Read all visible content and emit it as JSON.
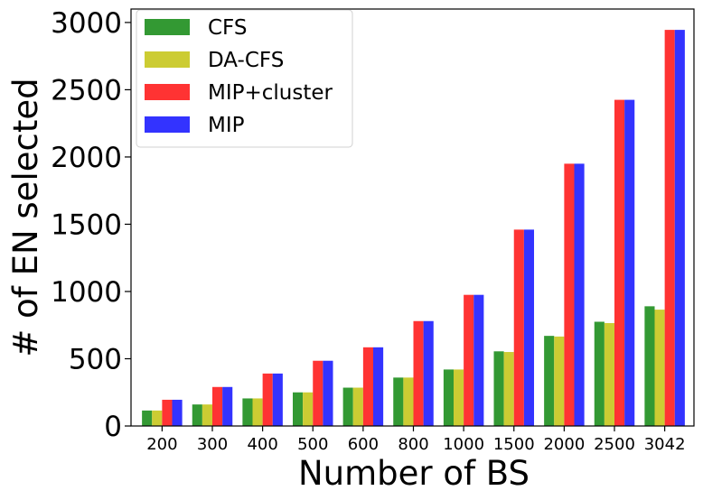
{
  "chart_data": {
    "type": "bar",
    "xlabel": "Number of BS",
    "ylabel": "# of EN selected",
    "categories": [
      "200",
      "300",
      "400",
      "500",
      "600",
      "800",
      "1000",
      "1500",
      "2000",
      "2500",
      "3042"
    ],
    "ylim": [
      0,
      3100
    ],
    "yticks": [
      0,
      500,
      1000,
      1500,
      2000,
      2500,
      3000
    ],
    "grid": false,
    "legend_position": "top-left",
    "series": [
      {
        "name": "CFS",
        "color": "#339933",
        "values": [
          115,
          160,
          205,
          250,
          285,
          360,
          420,
          555,
          670,
          775,
          890
        ]
      },
      {
        "name": "DA-CFS",
        "color": "#cccc33",
        "values": [
          115,
          160,
          205,
          250,
          285,
          360,
          420,
          550,
          665,
          765,
          865
        ]
      },
      {
        "name": "MIP+cluster",
        "color": "#ff3333",
        "values": [
          195,
          290,
          390,
          485,
          585,
          780,
          975,
          1460,
          1950,
          2425,
          2945
        ]
      },
      {
        "name": "MIP",
        "color": "#3333ff",
        "values": [
          195,
          290,
          390,
          485,
          585,
          780,
          975,
          1460,
          1950,
          2425,
          2945
        ]
      }
    ]
  }
}
